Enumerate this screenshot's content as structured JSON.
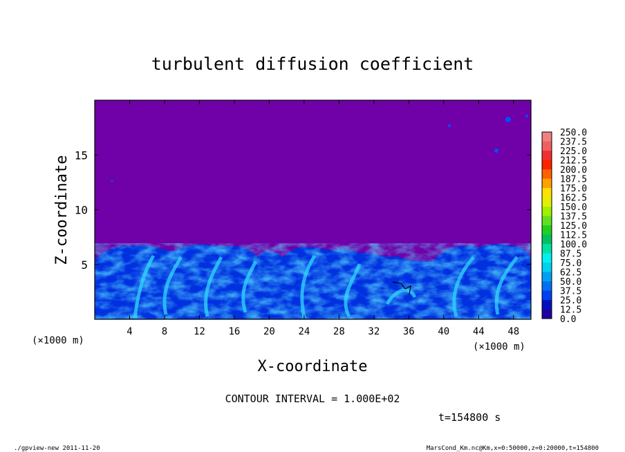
{
  "chart_data": {
    "type": "heatmap",
    "title": "turbulent diffusion coefficient",
    "xlabel": "X-coordinate",
    "ylabel": "Z-coordinate",
    "x_unit_left": "(×1000 m)",
    "x_unit_right": "(×1000 m)",
    "xlim": [
      0,
      50
    ],
    "ylim": [
      0,
      20
    ],
    "x_ticks": [
      "4",
      "8",
      "12",
      "16",
      "20",
      "24",
      "28",
      "32",
      "36",
      "40",
      "44",
      "48"
    ],
    "x_tick_values": [
      4,
      8,
      12,
      16,
      20,
      24,
      28,
      32,
      36,
      40,
      44,
      48
    ],
    "y_ticks": [
      "5",
      "10",
      "15"
    ],
    "y_tick_values": [
      5,
      10,
      15
    ],
    "colorbar": {
      "labels": [
        "250.0",
        "237.5",
        "225.0",
        "212.5",
        "200.0",
        "187.5",
        "175.0",
        "162.5",
        "150.0",
        "137.5",
        "125.0",
        "112.5",
        "100.0",
        "87.5",
        "75.0",
        "62.5",
        "50.0",
        "37.5",
        "25.0",
        "12.5",
        "0.0"
      ],
      "colors": [
        "#f08080",
        "#f06060",
        "#f03030",
        "#ff2000",
        "#ff6000",
        "#ffa000",
        "#ffe000",
        "#e0f000",
        "#a0f000",
        "#60e020",
        "#20d020",
        "#00c060",
        "#00e0a0",
        "#00f0f0",
        "#00d0f0",
        "#00a0f0",
        "#0070f0",
        "#0040f0",
        "#0010c0",
        "#2000a0",
        "#7000a8"
      ]
    },
    "background_color": "#7000a8",
    "turbulent_layer_top_approx": 6.5,
    "contour_interval": "CONTOUR INTERVAL = 1.000E+02",
    "time_label": "t=154800 s"
  },
  "footer": {
    "left": "./gpview-new  2011-11-20",
    "right": "MarsCond_Km.nc@Km,x=0:50000,z=0:20000,t=154800"
  }
}
